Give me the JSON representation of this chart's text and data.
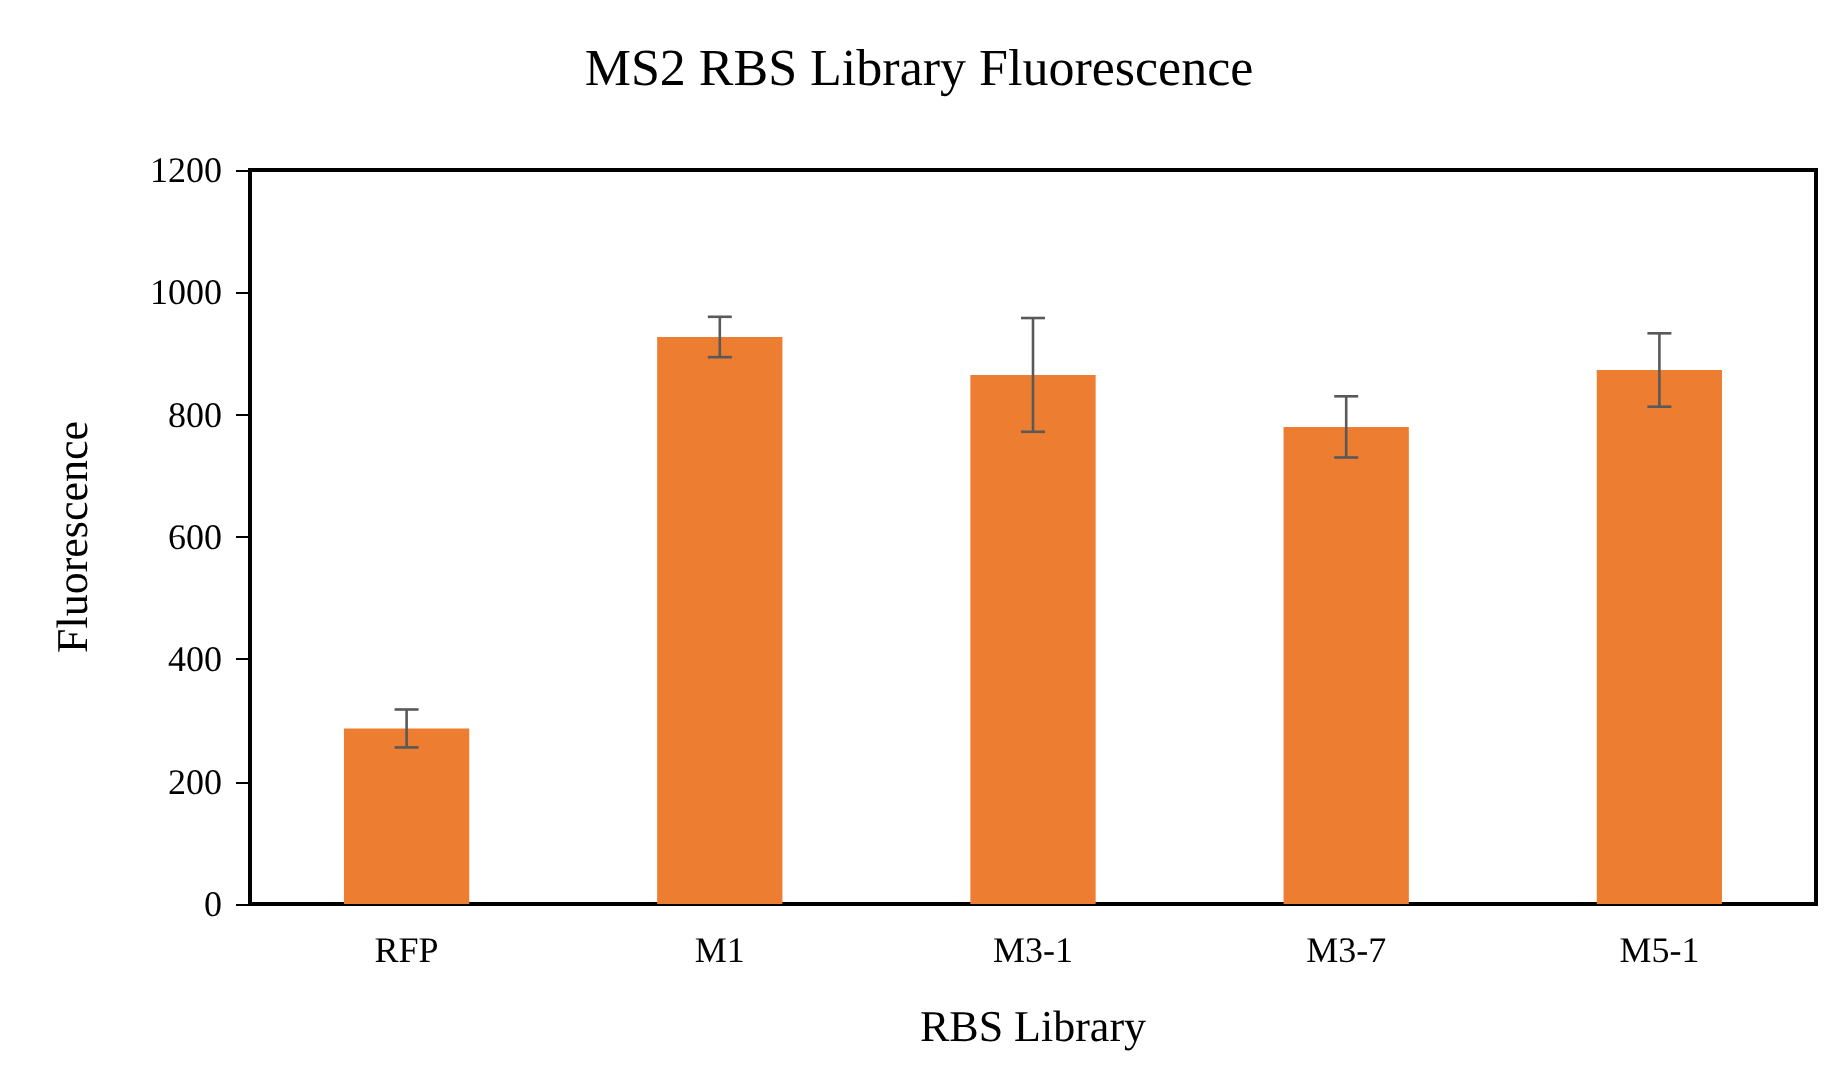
{
  "chart_data": {
    "type": "bar",
    "title": "MS2 RBS Library Fluorescence",
    "xlabel": "RBS Library",
    "ylabel": "Fluorescence",
    "categories": [
      "RFP",
      "M1",
      "M3-1",
      "M3-7",
      "M5-1"
    ],
    "values": [
      287,
      927,
      865,
      780,
      873
    ],
    "errors": [
      31,
      33,
      93,
      50,
      60
    ],
    "color": "#ed7d31",
    "ylim": [
      0,
      1200
    ],
    "yticks": [
      0,
      200,
      400,
      600,
      800,
      1000,
      1200
    ],
    "grid": false
  }
}
